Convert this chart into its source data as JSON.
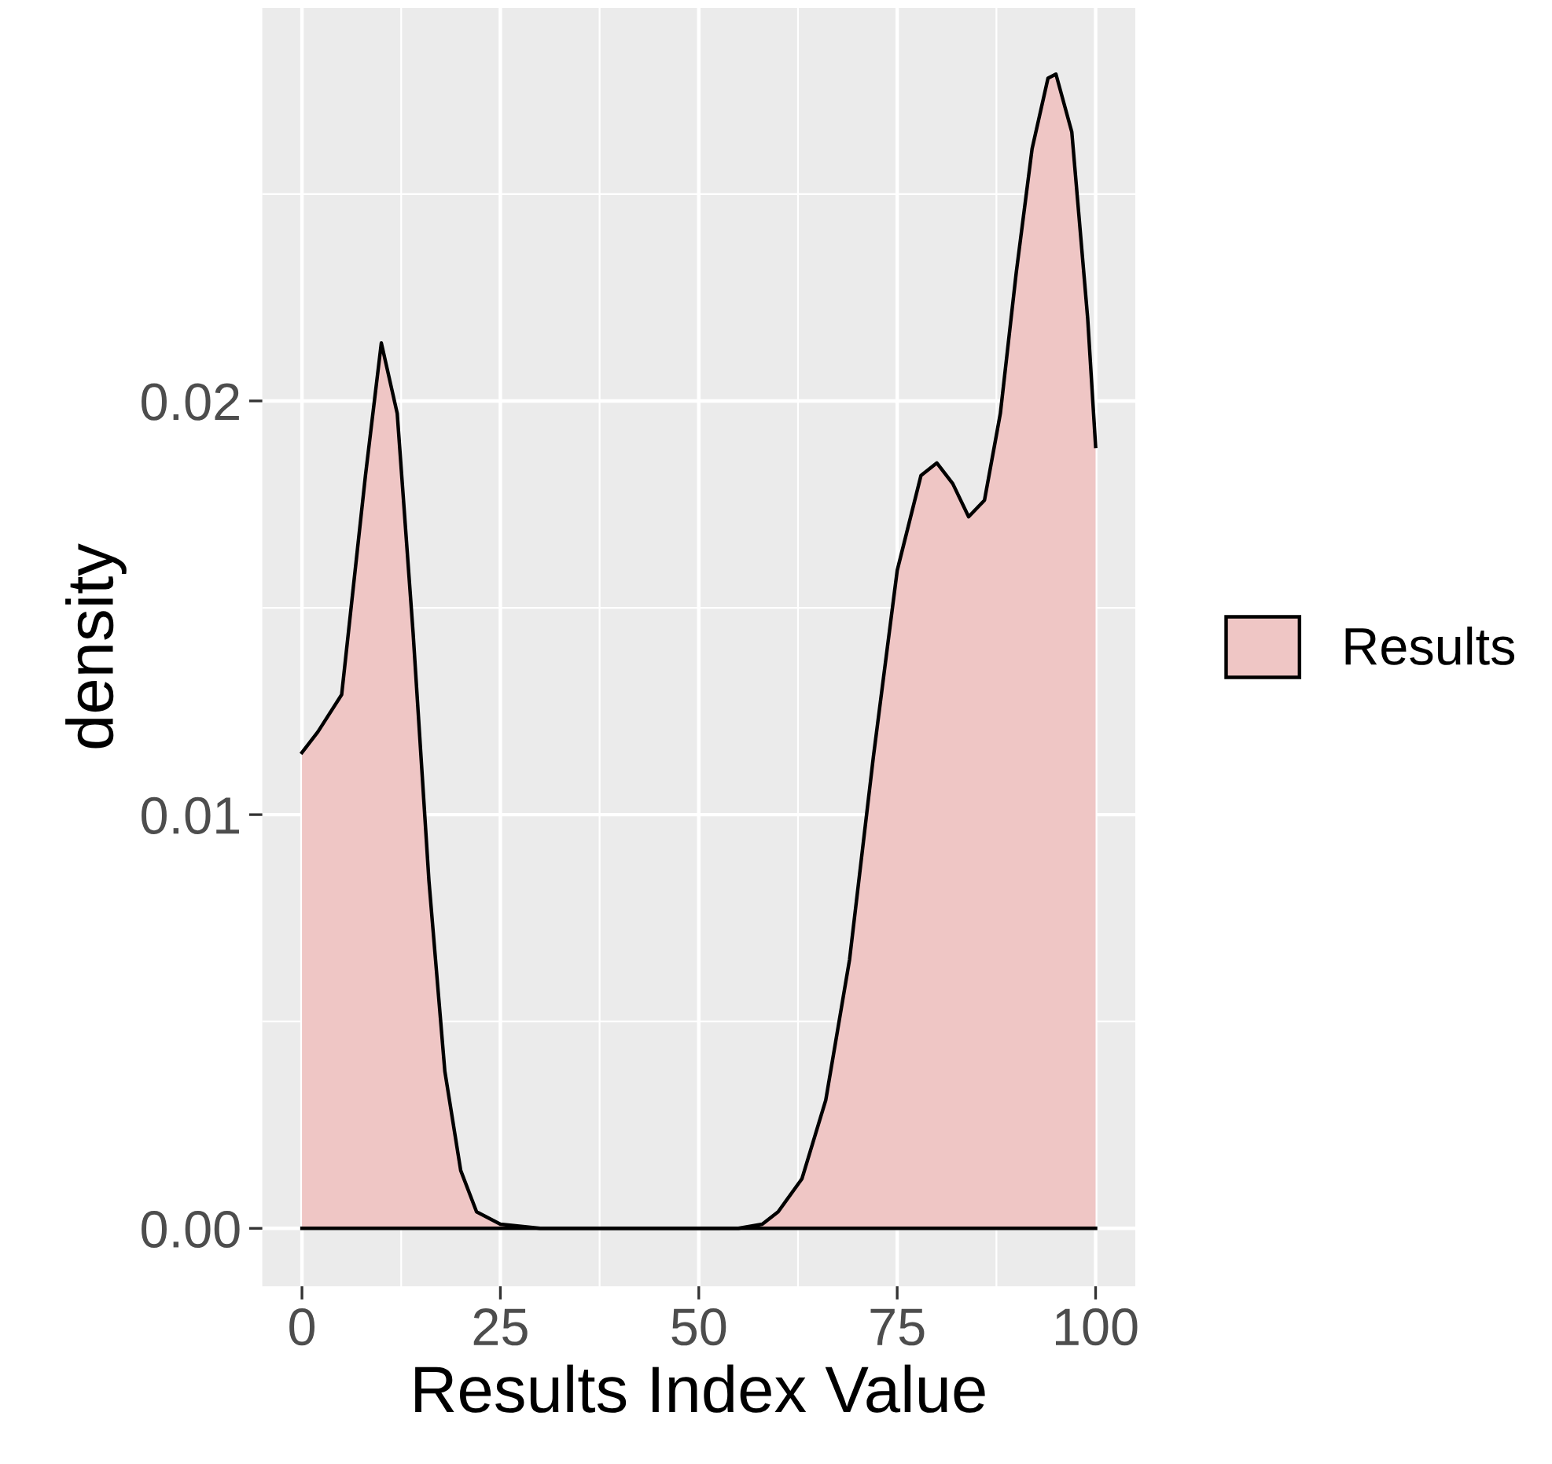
{
  "chart_data": {
    "type": "area",
    "xlabel": "Results Index Value",
    "ylabel": "density",
    "xlim": [
      -5,
      105
    ],
    "ylim": [
      -0.0014,
      0.0295
    ],
    "xticks": [
      0,
      25,
      50,
      75,
      100
    ],
    "yticks": [
      {
        "value": 0,
        "label": "0.00"
      },
      {
        "value": 0.01,
        "label": "0.01"
      },
      {
        "value": 0.02,
        "label": "0.02"
      }
    ],
    "grid": true,
    "legend": "right",
    "series": [
      {
        "name": "Results",
        "color": "#efc6c5",
        "x": [
          0,
          2,
          5,
          8,
          10,
          12,
          14,
          16,
          18,
          20,
          22,
          25,
          30,
          40,
          50,
          55,
          58,
          60,
          63,
          66,
          69,
          72,
          75,
          78,
          80,
          82,
          84,
          86,
          88,
          90,
          92,
          94,
          95,
          97,
          99,
          100
        ],
        "values": [
          0.0115,
          0.012,
          0.0129,
          0.0182,
          0.0214,
          0.0197,
          0.0144,
          0.0084,
          0.0038,
          0.0014,
          0.0004,
          0.0001,
          0,
          0,
          0,
          0,
          0.0001,
          0.0004,
          0.0012,
          0.0031,
          0.0065,
          0.0114,
          0.0159,
          0.0182,
          0.0185,
          0.018,
          0.0172,
          0.0176,
          0.0197,
          0.0231,
          0.0261,
          0.0278,
          0.0279,
          0.0265,
          0.022,
          0.0189
        ]
      }
    ]
  }
}
